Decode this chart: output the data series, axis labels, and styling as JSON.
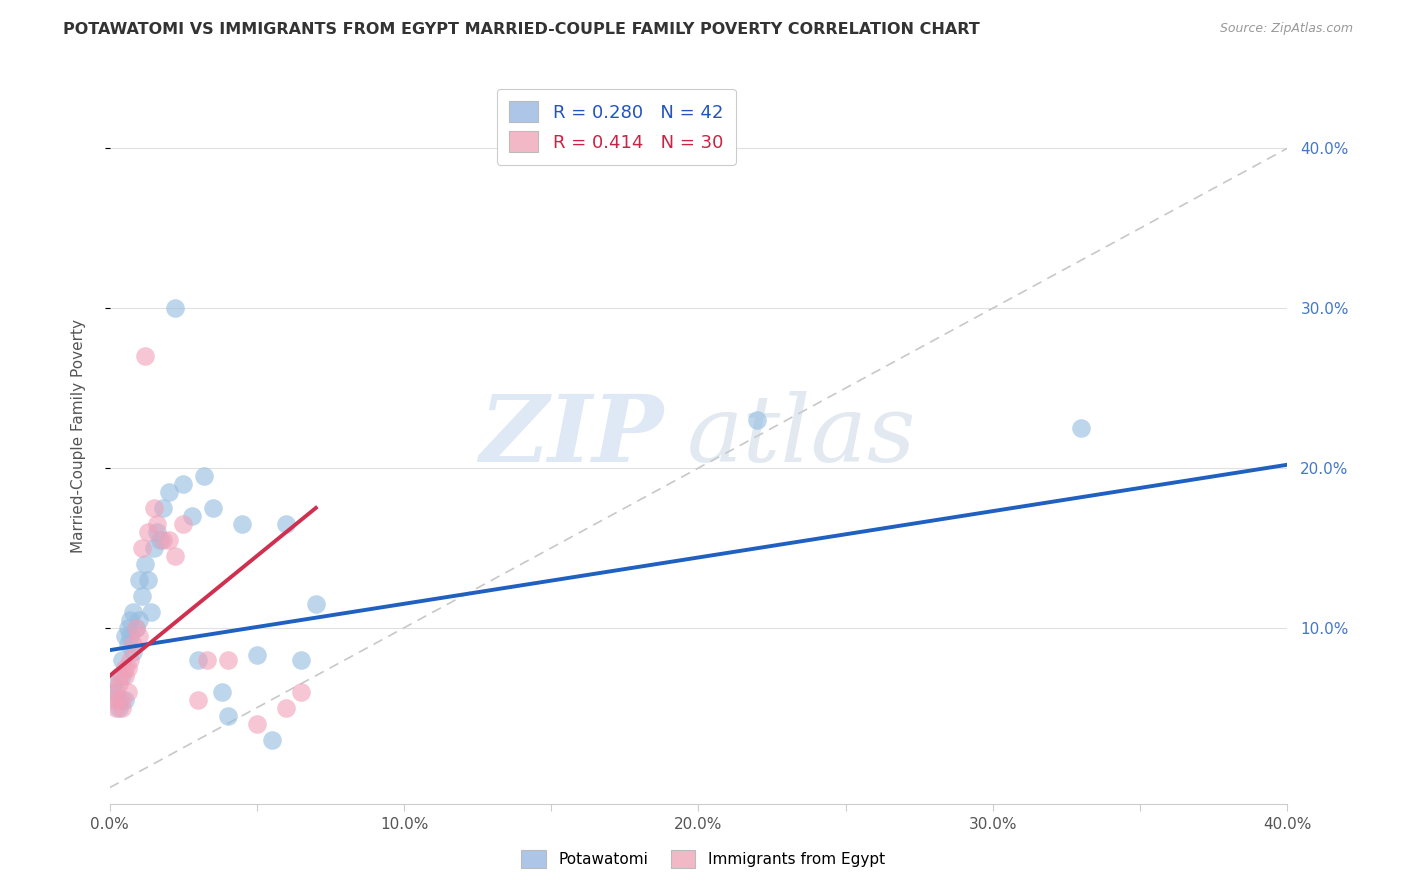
{
  "title": "POTAWATOMI VS IMMIGRANTS FROM EGYPT MARRIED-COUPLE FAMILY POVERTY CORRELATION CHART",
  "source": "Source: ZipAtlas.com",
  "ylabel": "Married-Couple Family Poverty",
  "xlim": [
    0.0,
    0.4
  ],
  "ylim": [
    -0.01,
    0.45
  ],
  "xtick_labels": [
    "0.0%",
    "",
    "10.0%",
    "",
    "20.0%",
    "",
    "30.0%",
    "",
    "40.0%"
  ],
  "xtick_values": [
    0.0,
    0.05,
    0.1,
    0.15,
    0.2,
    0.25,
    0.3,
    0.35,
    0.4
  ],
  "ytick_labels": [
    "10.0%",
    "20.0%",
    "30.0%",
    "40.0%"
  ],
  "ytick_values": [
    0.1,
    0.2,
    0.3,
    0.4
  ],
  "legend1_label": "R = 0.280   N = 42",
  "legend2_label": "R = 0.414   N = 30",
  "legend_color1": "#adc6e8",
  "legend_color2": "#f2b8c6",
  "potawatomi_color": "#93bce0",
  "egypt_color": "#f0a0b8",
  "trendline1_color": "#2060c0",
  "trendline2_color": "#d03050",
  "diagonal_color": "#c8c8c8",
  "grid_color": "#e0e0e0",
  "background_color": "#ffffff",
  "watermark_zip": "ZIP",
  "watermark_atlas": "atlas",
  "trendline1_x": [
    0.0,
    0.4
  ],
  "trendline1_y": [
    0.086,
    0.202
  ],
  "trendline2_x": [
    0.0,
    0.07
  ],
  "trendline2_y": [
    0.07,
    0.175
  ],
  "potawatomi_x": [
    0.001,
    0.002,
    0.003,
    0.003,
    0.004,
    0.004,
    0.005,
    0.005,
    0.006,
    0.006,
    0.007,
    0.007,
    0.008,
    0.008,
    0.009,
    0.01,
    0.01,
    0.011,
    0.012,
    0.013,
    0.014,
    0.015,
    0.016,
    0.017,
    0.018,
    0.02,
    0.022,
    0.025,
    0.028,
    0.03,
    0.032,
    0.035,
    0.038,
    0.04,
    0.045,
    0.05,
    0.055,
    0.06,
    0.065,
    0.07,
    0.22,
    0.33
  ],
  "potawatomi_y": [
    0.065,
    0.06,
    0.05,
    0.055,
    0.07,
    0.08,
    0.055,
    0.095,
    0.09,
    0.1,
    0.095,
    0.105,
    0.11,
    0.085,
    0.1,
    0.105,
    0.13,
    0.12,
    0.14,
    0.13,
    0.11,
    0.15,
    0.16,
    0.155,
    0.175,
    0.185,
    0.3,
    0.19,
    0.17,
    0.08,
    0.195,
    0.175,
    0.06,
    0.045,
    0.165,
    0.083,
    0.03,
    0.165,
    0.08,
    0.115,
    0.23,
    0.225
  ],
  "egypt_x": [
    0.001,
    0.002,
    0.002,
    0.003,
    0.003,
    0.004,
    0.004,
    0.005,
    0.005,
    0.006,
    0.006,
    0.007,
    0.008,
    0.009,
    0.01,
    0.011,
    0.012,
    0.013,
    0.015,
    0.016,
    0.018,
    0.02,
    0.022,
    0.025,
    0.03,
    0.033,
    0.04,
    0.05,
    0.06,
    0.065
  ],
  "egypt_y": [
    0.06,
    0.055,
    0.05,
    0.065,
    0.07,
    0.05,
    0.055,
    0.07,
    0.075,
    0.06,
    0.075,
    0.08,
    0.09,
    0.1,
    0.095,
    0.15,
    0.27,
    0.16,
    0.175,
    0.165,
    0.155,
    0.155,
    0.145,
    0.165,
    0.055,
    0.08,
    0.08,
    0.04,
    0.05,
    0.06
  ]
}
